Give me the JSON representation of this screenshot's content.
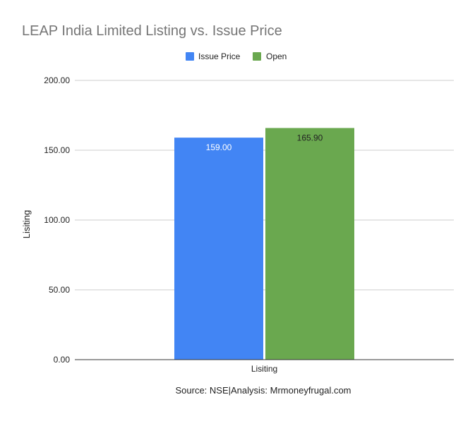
{
  "chart_data": {
    "type": "bar",
    "title": "LEAP India Limited Listing vs. Issue Price",
    "categories": [
      "Lisiting"
    ],
    "series": [
      {
        "name": "Issue Price",
        "values": [
          159.0
        ],
        "color": "#4285f4",
        "label_color": "#ffffff"
      },
      {
        "name": "Open",
        "values": [
          165.9
        ],
        "color": "#6aa84f",
        "label_color": "#222222"
      }
    ],
    "xlabel": "Lisiting",
    "ylabel": "Lisiting",
    "ylim": [
      0,
      200
    ],
    "yticks": [
      0,
      50,
      100,
      150,
      200
    ],
    "grid": true,
    "legend_position": "top",
    "source_note": "Source: NSE|Analysis: Mrmoneyfrugal.com"
  }
}
